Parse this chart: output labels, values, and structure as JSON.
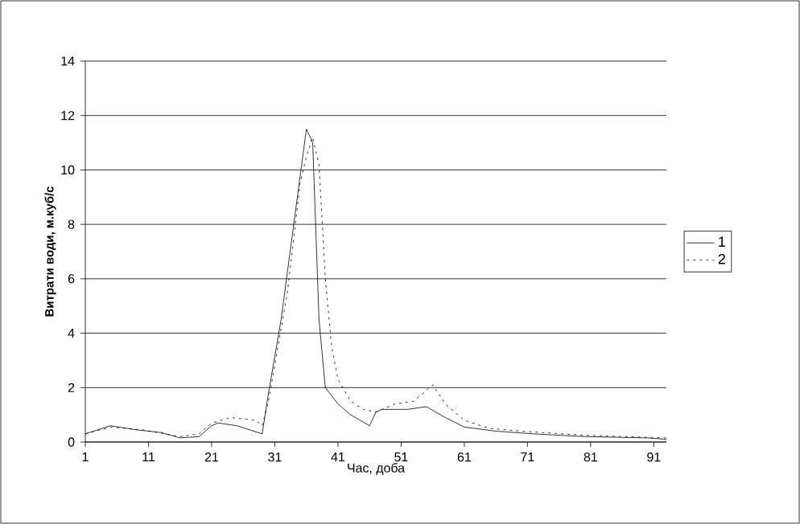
{
  "chart_data": {
    "type": "line",
    "xlabel": "Час, доба",
    "ylabel": "Витрати води, м.куб/с",
    "xlim": [
      1,
      93
    ],
    "xticks": [
      1,
      11,
      21,
      31,
      41,
      51,
      61,
      71,
      81,
      91
    ],
    "ylim": [
      0,
      14
    ],
    "yticks": [
      0,
      2,
      4,
      6,
      8,
      10,
      12,
      14
    ],
    "grid": "y",
    "legend": "right",
    "marker": "none",
    "series": [
      {
        "name": "1",
        "color": "#000000",
        "line_style": "solid",
        "x": [
          1,
          5,
          9,
          13,
          16,
          19,
          21,
          22,
          25,
          29,
          30,
          32,
          34,
          36,
          37,
          38,
          39,
          41,
          43,
          46,
          47,
          48,
          52,
          55,
          58,
          61,
          66,
          72,
          80,
          90,
          93
        ],
        "values": [
          0.3,
          0.6,
          0.45,
          0.35,
          0.15,
          0.2,
          0.6,
          0.7,
          0.6,
          0.3,
          1.8,
          4.5,
          8,
          11.5,
          11,
          4.5,
          2,
          1.4,
          1,
          0.6,
          1.1,
          1.2,
          1.2,
          1.3,
          0.9,
          0.55,
          0.4,
          0.3,
          0.2,
          0.15,
          0.1
        ]
      },
      {
        "name": "2",
        "color": "#000000",
        "line_style": "dotted",
        "x": [
          1,
          5,
          10,
          16,
          19,
          21,
          24,
          28,
          29,
          30,
          33,
          35,
          36,
          37,
          38,
          39,
          40,
          41,
          43,
          45,
          47,
          50,
          53,
          56,
          58,
          61,
          65,
          70,
          80,
          93
        ],
        "values": [
          0.3,
          0.55,
          0.45,
          0.2,
          0.3,
          0.7,
          0.9,
          0.8,
          0.6,
          1.5,
          5.5,
          9.5,
          10.5,
          11.2,
          10.2,
          6,
          3.5,
          2.3,
          1.5,
          1.2,
          1.1,
          1.4,
          1.5,
          2.1,
          1.4,
          0.8,
          0.5,
          0.4,
          0.25,
          0.15
        ]
      }
    ]
  }
}
